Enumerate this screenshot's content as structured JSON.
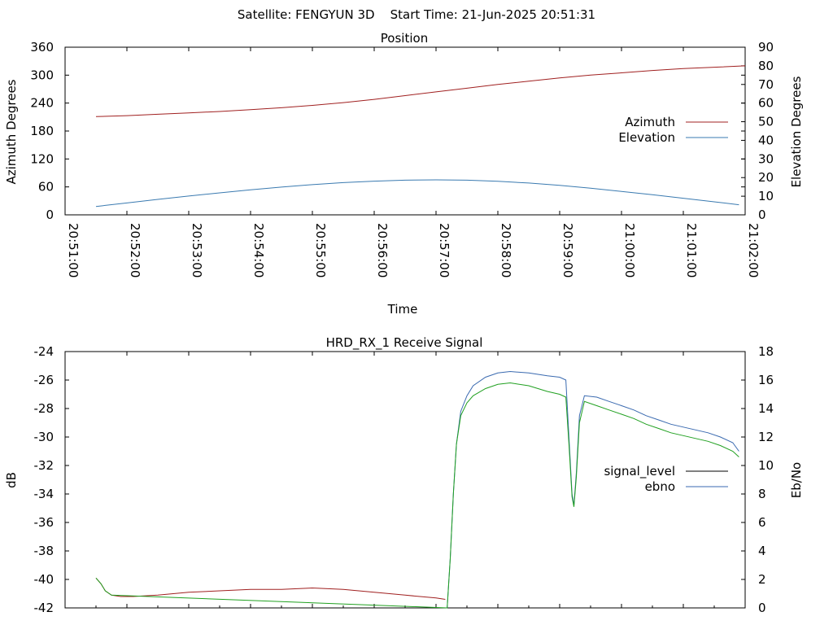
{
  "header": "Satellite: FENGYUN 3D    Start Time: 21-Jun-2025 20:51:31",
  "chart_data": [
    {
      "type": "line",
      "title": "Position",
      "xlabel": "Time",
      "ylabel": "Azimuth Degrees",
      "y2label": "Elevation Degrees",
      "x_ticks": [
        "20:51:00",
        "20:52:00",
        "20:53:00",
        "20:54:00",
        "20:55:00",
        "20:56:00",
        "20:57:00",
        "20:58:00",
        "20:59:00",
        "21:00:00",
        "21:01:00",
        "21:02:00"
      ],
      "xlim_minutes": [
        0,
        11
      ],
      "ylim": [
        0,
        360
      ],
      "y_ticks": [
        0,
        60,
        120,
        180,
        240,
        300,
        360
      ],
      "y2lim": [
        0,
        90
      ],
      "y2_ticks": [
        0,
        10,
        20,
        30,
        40,
        50,
        60,
        70,
        80,
        90
      ],
      "legend_position": "right",
      "series": [
        {
          "name": "Azimuth",
          "axis": "y",
          "color": "#a02020",
          "x": [
            0.5,
            1.0,
            1.5,
            2.0,
            2.5,
            3.0,
            3.5,
            4.0,
            4.5,
            5.0,
            5.5,
            6.0,
            6.5,
            7.0,
            7.5,
            8.0,
            8.5,
            9.0,
            9.5,
            10.0,
            10.5,
            11.0
          ],
          "y": [
            211,
            213,
            216,
            219,
            222,
            226,
            230,
            235,
            241,
            248,
            256,
            264,
            272,
            280,
            287,
            294,
            300,
            305,
            310,
            314,
            317,
            320
          ]
        },
        {
          "name": "Elevation",
          "axis": "y2",
          "color": "#3a7ab0",
          "x": [
            0.5,
            1.0,
            1.5,
            2.0,
            2.5,
            3.0,
            3.5,
            4.0,
            4.5,
            5.0,
            5.5,
            6.0,
            6.5,
            7.0,
            7.5,
            8.0,
            8.5,
            9.0,
            9.5,
            10.0,
            10.5,
            10.9
          ],
          "y": [
            4.5,
            6.4,
            8.3,
            10.1,
            11.8,
            13.4,
            14.9,
            16.2,
            17.3,
            18.1,
            18.6,
            18.8,
            18.6,
            18.0,
            17.1,
            15.8,
            14.3,
            12.6,
            10.8,
            8.9,
            7.0,
            5.4
          ]
        }
      ]
    },
    {
      "type": "line",
      "title": "HRD_RX_1 Receive Signal",
      "xlabel": "",
      "ylabel": "dB",
      "y2label": "Eb/No",
      "xlim_minutes": [
        0,
        11
      ],
      "ylim": [
        -42,
        -24
      ],
      "y_ticks": [
        -42,
        -40,
        -38,
        -36,
        -34,
        -32,
        -30,
        -28,
        -26,
        -24
      ],
      "y2lim": [
        0,
        18
      ],
      "y2_ticks": [
        0,
        2,
        4,
        6,
        8,
        10,
        12,
        14,
        16,
        18
      ],
      "legend_position": "right",
      "series": [
        {
          "name": "signal_level",
          "axis": "y",
          "color": "#a02020",
          "x": [
            0.5,
            0.58,
            0.65,
            0.75,
            0.9,
            1.1,
            1.5,
            2.0,
            2.5,
            3.0,
            3.5,
            4.0,
            4.5,
            5.0,
            5.5,
            6.0,
            6.15
          ],
          "y": [
            -39.9,
            -40.3,
            -40.8,
            -41.1,
            -41.2,
            -41.2,
            -41.1,
            -40.9,
            -40.8,
            -40.7,
            -40.7,
            -40.6,
            -40.7,
            -40.9,
            -41.1,
            -41.3,
            -41.4
          ]
        },
        {
          "name": "ebno",
          "axis": "y2",
          "color": "#3a6ab0",
          "x": [
            6.18,
            6.23,
            6.28,
            6.33,
            6.4,
            6.5,
            6.6,
            6.8,
            7.0,
            7.2,
            7.5,
            7.8,
            8.0,
            8.1,
            8.15,
            8.2,
            8.23,
            8.27,
            8.32,
            8.4,
            8.6,
            8.8,
            9.0,
            9.2,
            9.4,
            9.6,
            9.8,
            10.0,
            10.2,
            10.4,
            10.6,
            10.8,
            10.9
          ],
          "y": [
            0.0,
            3.5,
            8.0,
            11.5,
            13.8,
            14.9,
            15.6,
            16.2,
            16.5,
            16.6,
            16.5,
            16.3,
            16.2,
            16.0,
            12.0,
            8.0,
            7.2,
            9.5,
            13.5,
            14.9,
            14.8,
            14.5,
            14.2,
            13.9,
            13.5,
            13.2,
            12.9,
            12.7,
            12.5,
            12.3,
            12.0,
            11.6,
            11.0
          ]
        },
        {
          "name": "",
          "axis": "y2",
          "color": "#20a020",
          "x": [
            0.5,
            0.58,
            0.65,
            0.75,
            6.18,
            6.23,
            6.28,
            6.33,
            6.4,
            6.5,
            6.6,
            6.8,
            7.0,
            7.2,
            7.5,
            7.8,
            8.0,
            8.1,
            8.15,
            8.2,
            8.23,
            8.27,
            8.32,
            8.4,
            8.6,
            8.8,
            9.0,
            9.2,
            9.4,
            9.6,
            9.8,
            10.0,
            10.2,
            10.4,
            10.6,
            10.8,
            10.9
          ],
          "y": [
            2.1,
            1.7,
            1.2,
            0.9,
            0.0,
            3.5,
            8.0,
            11.5,
            13.5,
            14.4,
            14.9,
            15.4,
            15.7,
            15.8,
            15.6,
            15.2,
            15.0,
            14.8,
            11.5,
            7.8,
            7.1,
            9.2,
            13.0,
            14.5,
            14.2,
            13.9,
            13.6,
            13.3,
            12.9,
            12.6,
            12.3,
            12.1,
            11.9,
            11.7,
            11.4,
            11.0,
            10.6
          ]
        }
      ]
    }
  ]
}
